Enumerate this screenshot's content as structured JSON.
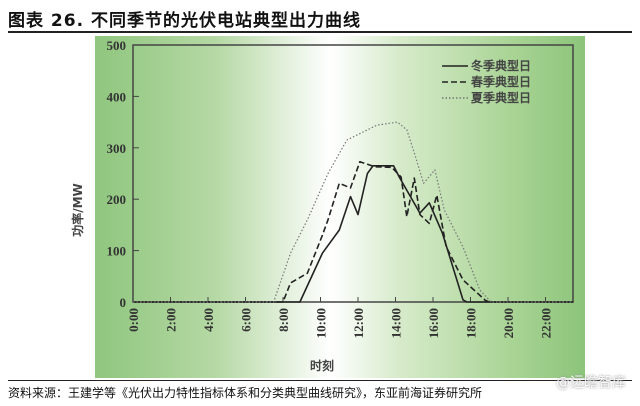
{
  "title": "图表 26. 不同季节的光伏电站典型出力曲线",
  "source": "资料来源：王建学等《光伏出力特性指标体系和分类典型曲线研究》，东亚前海证券研究所",
  "watermark": "@远瞻智库",
  "chart_data": {
    "type": "line",
    "xlabel": "时刻",
    "ylabel": "功率/MW",
    "ylim": [
      0,
      500
    ],
    "xlim": [
      0,
      23.5
    ],
    "yticks": [
      0,
      100,
      200,
      300,
      400,
      500
    ],
    "xticks": [
      "0:00",
      "2:00",
      "4:00",
      "6:00",
      "8:00",
      "10:00",
      "12:00",
      "14:00",
      "16:00",
      "18:00",
      "20:00",
      "22:00"
    ],
    "grid": false,
    "legend_position": "top-right",
    "series": [
      {
        "name": "冬季典型日",
        "style": "solid",
        "points": [
          [
            0,
            0
          ],
          [
            8.9,
            0
          ],
          [
            10.1,
            95
          ],
          [
            11.0,
            140
          ],
          [
            11.6,
            205
          ],
          [
            12.0,
            170
          ],
          [
            12.5,
            250
          ],
          [
            12.8,
            265
          ],
          [
            13.9,
            265
          ],
          [
            14.2,
            243
          ],
          [
            15.3,
            173
          ],
          [
            15.8,
            193
          ],
          [
            16.5,
            134
          ],
          [
            17.6,
            4
          ],
          [
            17.8,
            0
          ],
          [
            23.5,
            0
          ]
        ]
      },
      {
        "name": "春季典型日",
        "style": "dashed",
        "points": [
          [
            0,
            0
          ],
          [
            8.0,
            0
          ],
          [
            8.4,
            37
          ],
          [
            9.3,
            56
          ],
          [
            10.1,
            130
          ],
          [
            10.4,
            160
          ],
          [
            11.0,
            231
          ],
          [
            11.6,
            222
          ],
          [
            12.1,
            273
          ],
          [
            12.9,
            263
          ],
          [
            13.8,
            262
          ],
          [
            14.3,
            243
          ],
          [
            14.6,
            166
          ],
          [
            15.0,
            241
          ],
          [
            15.3,
            170
          ],
          [
            15.8,
            153
          ],
          [
            16.2,
            208
          ],
          [
            16.7,
            108
          ],
          [
            17.6,
            43
          ],
          [
            18.8,
            3
          ],
          [
            19.0,
            0
          ],
          [
            23.5,
            0
          ]
        ]
      },
      {
        "name": "夏季典型日",
        "style": "dotted",
        "points": [
          [
            0,
            0
          ],
          [
            7.5,
            0
          ],
          [
            8.4,
            95
          ],
          [
            9.3,
            160
          ],
          [
            10.4,
            250
          ],
          [
            11.4,
            315
          ],
          [
            13.0,
            344
          ],
          [
            14.1,
            350
          ],
          [
            14.6,
            335
          ],
          [
            15.0,
            290
          ],
          [
            15.5,
            231
          ],
          [
            16.1,
            257
          ],
          [
            16.6,
            179
          ],
          [
            17.6,
            107
          ],
          [
            18.5,
            23
          ],
          [
            19.1,
            0
          ],
          [
            23.5,
            0
          ]
        ]
      }
    ]
  }
}
